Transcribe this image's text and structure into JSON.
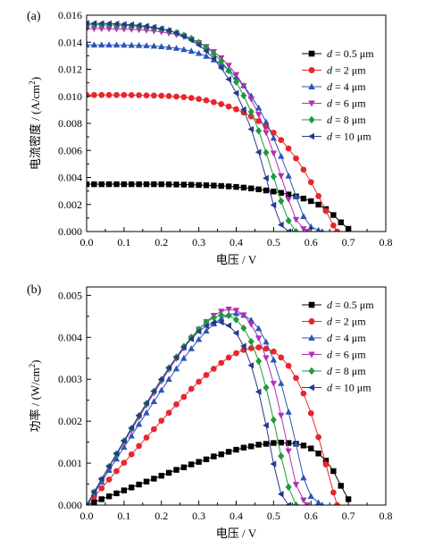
{
  "chart_data": [
    {
      "panel_label": "(a)",
      "type": "line",
      "xlabel": "电压 / V",
      "ylabel": "电流密度 / (A/cm²)",
      "ylabel_parts": {
        "text": "电流密度 / (A/cm",
        "sup": "2",
        "end": ")"
      },
      "xlim": [
        0.0,
        0.8
      ],
      "ylim": [
        0.0,
        0.016
      ],
      "xticks": [
        "0.0",
        "0.1",
        "0.2",
        "0.3",
        "0.4",
        "0.5",
        "0.6",
        "0.7",
        "0.8"
      ],
      "yticks": [
        "0.000",
        "0.002",
        "0.004",
        "0.006",
        "0.008",
        "0.010",
        "0.012",
        "0.014",
        "0.016"
      ],
      "grid": false,
      "legend_position": "top-right",
      "series": [
        {
          "name": "d = 0.5 μm",
          "d_value": "0.5",
          "color": "#000000",
          "marker": "square",
          "x": [
            0.0,
            0.02,
            0.04,
            0.06,
            0.08,
            0.1,
            0.12,
            0.14,
            0.16,
            0.18,
            0.2,
            0.22,
            0.24,
            0.26,
            0.28,
            0.3,
            0.32,
            0.34,
            0.36,
            0.38,
            0.4,
            0.42,
            0.44,
            0.46,
            0.48,
            0.5,
            0.52,
            0.54,
            0.56,
            0.58,
            0.6,
            0.62,
            0.64,
            0.66,
            0.68,
            0.7
          ],
          "y": [
            0.0035,
            0.0035,
            0.0035,
            0.0035,
            0.0035,
            0.0035,
            0.0035,
            0.0035,
            0.0035,
            0.0035,
            0.0035,
            0.00349,
            0.00348,
            0.00347,
            0.00346,
            0.00344,
            0.00342,
            0.0034,
            0.00337,
            0.00334,
            0.0033,
            0.00325,
            0.00319,
            0.00312,
            0.00304,
            0.00296,
            0.00286,
            0.00274,
            0.0026,
            0.00244,
            0.00225,
            0.00199,
            0.00166,
            0.00122,
            0.00068,
            0.0002
          ]
        },
        {
          "name": "d = 2 μm",
          "d_value": "2",
          "color": "#e8262b",
          "marker": "circle",
          "x": [
            0.0,
            0.02,
            0.04,
            0.06,
            0.08,
            0.1,
            0.12,
            0.14,
            0.16,
            0.18,
            0.2,
            0.22,
            0.24,
            0.26,
            0.28,
            0.3,
            0.32,
            0.34,
            0.36,
            0.38,
            0.4,
            0.42,
            0.44,
            0.46,
            0.48,
            0.5,
            0.52,
            0.54,
            0.56,
            0.58,
            0.6,
            0.62,
            0.64,
            0.66,
            0.67
          ],
          "y": [
            0.0101,
            0.0101,
            0.0101,
            0.0101,
            0.0101,
            0.0101,
            0.01009,
            0.01008,
            0.01007,
            0.01006,
            0.01004,
            0.01002,
            0.00998,
            0.00994,
            0.00988,
            0.0098,
            0.0097,
            0.00957,
            0.00942,
            0.00925,
            0.00904,
            0.0088,
            0.00851,
            0.00817,
            0.00777,
            0.00731,
            0.00677,
            0.00614,
            0.00541,
            0.00458,
            0.00365,
            0.00262,
            0.00152,
            0.00045,
            0.0
          ]
        },
        {
          "name": "d = 4 μm",
          "d_value": "4",
          "color": "#2c55b8",
          "marker": "triangle-up",
          "x": [
            0.0,
            0.02,
            0.04,
            0.06,
            0.08,
            0.1,
            0.12,
            0.14,
            0.16,
            0.18,
            0.2,
            0.22,
            0.24,
            0.26,
            0.28,
            0.3,
            0.32,
            0.34,
            0.36,
            0.38,
            0.4,
            0.42,
            0.44,
            0.46,
            0.48,
            0.5,
            0.52,
            0.54,
            0.56,
            0.58,
            0.6,
            0.62,
            0.63
          ],
          "y": [
            0.0138,
            0.0138,
            0.0138,
            0.0138,
            0.0138,
            0.01379,
            0.01378,
            0.01377,
            0.01375,
            0.01372,
            0.01368,
            0.01363,
            0.01356,
            0.01346,
            0.01334,
            0.01318,
            0.01297,
            0.0127,
            0.01236,
            0.01194,
            0.01142,
            0.01079,
            0.01003,
            0.00914,
            0.0081,
            0.00691,
            0.00557,
            0.00412,
            0.0026,
            0.00112,
            0.00035,
            0.0001,
            0.0
          ]
        },
        {
          "name": "d = 6 μm",
          "d_value": "6",
          "color": "#b22fb4",
          "marker": "triangle-down",
          "x": [
            0.0,
            0.02,
            0.04,
            0.06,
            0.08,
            0.1,
            0.12,
            0.14,
            0.16,
            0.18,
            0.2,
            0.22,
            0.24,
            0.26,
            0.28,
            0.3,
            0.32,
            0.34,
            0.36,
            0.38,
            0.4,
            0.42,
            0.44,
            0.46,
            0.48,
            0.5,
            0.52,
            0.54,
            0.56,
            0.58,
            0.59
          ],
          "y": [
            0.015,
            0.015,
            0.015,
            0.01499,
            0.01498,
            0.01497,
            0.01495,
            0.01492,
            0.01488,
            0.01483,
            0.01476,
            0.01467,
            0.01455,
            0.0144,
            0.01421,
            0.01397,
            0.01367,
            0.0133,
            0.01284,
            0.01228,
            0.0116,
            0.01078,
            0.0098,
            0.00865,
            0.00731,
            0.00579,
            0.00412,
            0.00238,
            0.00088,
            0.0002,
            0.0
          ]
        },
        {
          "name": "d = 8 μm",
          "d_value": "8",
          "color": "#1e9a3c",
          "marker": "diamond",
          "x": [
            0.0,
            0.02,
            0.04,
            0.06,
            0.08,
            0.1,
            0.12,
            0.14,
            0.16,
            0.18,
            0.2,
            0.22,
            0.24,
            0.26,
            0.28,
            0.3,
            0.32,
            0.34,
            0.36,
            0.38,
            0.4,
            0.42,
            0.44,
            0.46,
            0.48,
            0.5,
            0.52,
            0.54,
            0.56
          ],
          "y": [
            0.0153,
            0.0153,
            0.01529,
            0.01528,
            0.01527,
            0.01525,
            0.01522,
            0.01518,
            0.01513,
            0.01506,
            0.01497,
            0.01486,
            0.01471,
            0.01452,
            0.01428,
            0.01398,
            0.01361,
            0.01315,
            0.01259,
            0.0119,
            0.01106,
            0.01005,
            0.00886,
            0.00745,
            0.00584,
            0.00406,
            0.00225,
            0.0008,
            0.0
          ]
        },
        {
          "name": "d = 10 μm",
          "d_value": "10",
          "color": "#243a8c",
          "marker": "triangle-left",
          "x": [
            0.0,
            0.02,
            0.04,
            0.06,
            0.08,
            0.1,
            0.12,
            0.14,
            0.16,
            0.18,
            0.2,
            0.22,
            0.24,
            0.26,
            0.28,
            0.3,
            0.32,
            0.34,
            0.36,
            0.38,
            0.4,
            0.42,
            0.44,
            0.46,
            0.48,
            0.5,
            0.52,
            0.54
          ],
          "y": [
            0.0154,
            0.0154,
            0.01539,
            0.01538,
            0.01536,
            0.01533,
            0.0153,
            0.01525,
            0.01519,
            0.01511,
            0.015,
            0.01486,
            0.01468,
            0.01445,
            0.01416,
            0.0138,
            0.01335,
            0.01279,
            0.0121,
            0.01126,
            0.01024,
            0.00902,
            0.00757,
            0.00587,
            0.00395,
            0.00196,
            0.0005,
            0.0
          ]
        }
      ]
    },
    {
      "panel_label": "(b)",
      "type": "line",
      "xlabel": "电压 / V",
      "ylabel": "功率 / (W/cm²)",
      "ylabel_parts": {
        "text": "功率 / (W/cm",
        "sup": "2",
        "end": ")"
      },
      "xlim": [
        0.0,
        0.8
      ],
      "ylim": [
        0.0,
        0.0052
      ],
      "xticks": [
        "0.0",
        "0.1",
        "0.2",
        "0.3",
        "0.4",
        "0.5",
        "0.6",
        "0.7",
        "0.8"
      ],
      "yticks": [
        "0.000",
        "0.001",
        "0.002",
        "0.003",
        "0.004",
        "0.005"
      ],
      "grid": false,
      "legend_position": "top-right",
      "series": [
        {
          "name": "d = 0.5 μm",
          "d_value": "0.5",
          "color": "#000000",
          "marker": "square",
          "x": [
            0.0,
            0.02,
            0.04,
            0.06,
            0.08,
            0.1,
            0.12,
            0.14,
            0.16,
            0.18,
            0.2,
            0.22,
            0.24,
            0.26,
            0.28,
            0.3,
            0.32,
            0.34,
            0.36,
            0.38,
            0.4,
            0.42,
            0.44,
            0.46,
            0.48,
            0.5,
            0.52,
            0.54,
            0.56,
            0.58,
            0.6,
            0.62,
            0.64,
            0.66,
            0.68,
            0.7
          ],
          "y": [
            0.0,
            7e-05,
            0.00014,
            0.00021,
            0.00028,
            0.00035,
            0.00042,
            0.00049,
            0.00056,
            0.00063,
            0.0007,
            0.00077,
            0.00084,
            0.0009,
            0.00097,
            0.00103,
            0.00109,
            0.00116,
            0.00121,
            0.00127,
            0.00132,
            0.00137,
            0.0014,
            0.00144,
            0.00146,
            0.00148,
            0.00149,
            0.00148,
            0.00146,
            0.00142,
            0.00135,
            0.00123,
            0.00106,
            0.00081,
            0.00046,
            0.00014
          ]
        },
        {
          "name": "d = 2 μm",
          "d_value": "2",
          "color": "#e8262b",
          "marker": "circle",
          "x": [
            0.0,
            0.02,
            0.04,
            0.06,
            0.08,
            0.1,
            0.12,
            0.14,
            0.16,
            0.18,
            0.2,
            0.22,
            0.24,
            0.26,
            0.28,
            0.3,
            0.32,
            0.34,
            0.36,
            0.38,
            0.4,
            0.42,
            0.44,
            0.46,
            0.48,
            0.5,
            0.52,
            0.54,
            0.56,
            0.58,
            0.6,
            0.62,
            0.64,
            0.66,
            0.67
          ],
          "y": [
            0.0,
            0.0002,
            0.0004,
            0.00061,
            0.00081,
            0.00101,
            0.00121,
            0.00141,
            0.00161,
            0.00181,
            0.00201,
            0.0022,
            0.0024,
            0.00258,
            0.00277,
            0.00294,
            0.0031,
            0.00325,
            0.00339,
            0.00352,
            0.00362,
            0.0037,
            0.00374,
            0.00376,
            0.00373,
            0.00366,
            0.00352,
            0.00332,
            0.00303,
            0.00266,
            0.00219,
            0.00162,
            0.00097,
            0.0003,
            0.0
          ]
        },
        {
          "name": "d = 4 μm",
          "d_value": "4",
          "color": "#2c55b8",
          "marker": "triangle-up",
          "x": [
            0.0,
            0.02,
            0.04,
            0.06,
            0.08,
            0.1,
            0.12,
            0.14,
            0.16,
            0.18,
            0.2,
            0.22,
            0.24,
            0.26,
            0.28,
            0.3,
            0.32,
            0.34,
            0.36,
            0.38,
            0.4,
            0.42,
            0.44,
            0.46,
            0.48,
            0.5,
            0.52,
            0.54,
            0.56,
            0.58,
            0.6,
            0.62,
            0.63
          ],
          "y": [
            0.0,
            0.00028,
            0.00055,
            0.00083,
            0.0011,
            0.00138,
            0.00165,
            0.00193,
            0.0022,
            0.00247,
            0.00274,
            0.003,
            0.00325,
            0.0035,
            0.00373,
            0.00395,
            0.00415,
            0.00432,
            0.00445,
            0.00454,
            0.00457,
            0.00453,
            0.00441,
            0.00421,
            0.00389,
            0.00346,
            0.0029,
            0.00222,
            0.00146,
            0.00065,
            0.00021,
            6e-05,
            0.0
          ]
        },
        {
          "name": "d = 6 μm",
          "d_value": "6",
          "color": "#b22fb4",
          "marker": "triangle-down",
          "x": [
            0.0,
            0.02,
            0.04,
            0.06,
            0.08,
            0.1,
            0.12,
            0.14,
            0.16,
            0.18,
            0.2,
            0.22,
            0.24,
            0.26,
            0.28,
            0.3,
            0.32,
            0.34,
            0.36,
            0.38,
            0.4,
            0.42,
            0.44,
            0.46,
            0.48,
            0.5,
            0.52,
            0.54,
            0.56,
            0.58,
            0.59
          ],
          "y": [
            0.0,
            0.0003,
            0.0006,
            0.0009,
            0.0012,
            0.0015,
            0.00179,
            0.00209,
            0.00238,
            0.00267,
            0.00295,
            0.00323,
            0.00349,
            0.00374,
            0.00398,
            0.00419,
            0.00437,
            0.00452,
            0.00462,
            0.00467,
            0.00464,
            0.00453,
            0.00431,
            0.00398,
            0.00351,
            0.0029,
            0.00214,
            0.00129,
            0.00049,
            0.00012,
            0.0
          ]
        },
        {
          "name": "d = 8 μm",
          "d_value": "8",
          "color": "#1e9a3c",
          "marker": "diamond",
          "x": [
            0.0,
            0.02,
            0.04,
            0.06,
            0.08,
            0.1,
            0.12,
            0.14,
            0.16,
            0.18,
            0.2,
            0.22,
            0.24,
            0.26,
            0.28,
            0.3,
            0.32,
            0.34,
            0.36,
            0.38,
            0.4,
            0.42,
            0.44,
            0.46,
            0.48,
            0.5,
            0.52,
            0.54,
            0.56
          ],
          "y": [
            0.0,
            0.00031,
            0.00061,
            0.00092,
            0.00122,
            0.00153,
            0.00183,
            0.00213,
            0.00242,
            0.00271,
            0.00299,
            0.00327,
            0.00353,
            0.00378,
            0.004,
            0.00419,
            0.00436,
            0.00447,
            0.00453,
            0.00452,
            0.00442,
            0.00422,
            0.0039,
            0.00343,
            0.0028,
            0.00203,
            0.00117,
            0.00043,
            0.0
          ]
        },
        {
          "name": "d = 10 μm",
          "d_value": "10",
          "color": "#243a8c",
          "marker": "triangle-left",
          "x": [
            0.0,
            0.02,
            0.04,
            0.06,
            0.08,
            0.1,
            0.12,
            0.14,
            0.16,
            0.18,
            0.2,
            0.22,
            0.24,
            0.26,
            0.28,
            0.3,
            0.32,
            0.34,
            0.36,
            0.38,
            0.4,
            0.42,
            0.44,
            0.46,
            0.48,
            0.5,
            0.52,
            0.54
          ],
          "y": [
            0.0,
            0.00031,
            0.00062,
            0.00092,
            0.00123,
            0.00153,
            0.00184,
            0.00214,
            0.00243,
            0.00272,
            0.003,
            0.00327,
            0.00352,
            0.00376,
            0.00396,
            0.00414,
            0.00427,
            0.00435,
            0.00436,
            0.00428,
            0.0041,
            0.00379,
            0.00333,
            0.0027,
            0.0019,
            0.00098,
            0.00026,
            0.0
          ]
        }
      ]
    }
  ]
}
